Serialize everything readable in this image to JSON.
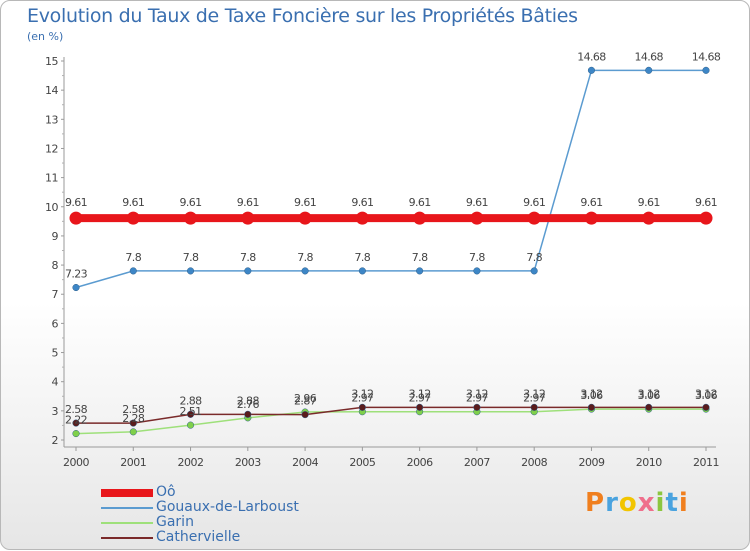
{
  "title": "Evolution du Taux de Taxe Foncière sur les Propriétés Bâties",
  "unit": "(en %)",
  "logo": {
    "text": "Proxiti",
    "letters": [
      {
        "ch": "P",
        "color": "#f07f1e"
      },
      {
        "ch": "r",
        "color": "#4aa3df"
      },
      {
        "ch": "o",
        "color": "#f2c500"
      },
      {
        "ch": "x",
        "color": "#ef6f8c"
      },
      {
        "ch": "i",
        "color": "#8cc63f"
      },
      {
        "ch": "t",
        "color": "#4aa3df"
      },
      {
        "ch": "i",
        "color": "#f07f1e"
      }
    ]
  },
  "chart_data": {
    "type": "line",
    "title": "Evolution du Taux de Taxe Foncière sur les Propriétés Bâties",
    "ylabel": "(en %)",
    "xlabel": "",
    "x": [
      "2000",
      "2001",
      "2002",
      "2003",
      "2004",
      "2005",
      "2006",
      "2007",
      "2008",
      "2009",
      "2010",
      "2011"
    ],
    "ylim": [
      2,
      15
    ],
    "yticks": [
      2,
      3,
      4,
      5,
      6,
      7,
      8,
      9,
      10,
      11,
      12,
      13,
      14,
      15
    ],
    "grid": false,
    "legend_position": "bottom-left",
    "series": [
      {
        "name": "Oô",
        "color": "#e8161b",
        "values": [
          9.61,
          9.61,
          9.61,
          9.61,
          9.61,
          9.61,
          9.61,
          9.61,
          9.61,
          9.61,
          9.61,
          9.61
        ],
        "labels": [
          "9.61",
          "9.61",
          "9.61",
          "9.61",
          "9.61",
          "9.61",
          "9.61",
          "9.61",
          "9.61",
          "9.61",
          "9.61",
          "9.61"
        ]
      },
      {
        "name": "Gouaux-de-Larboust",
        "color": "#5b9bd0",
        "values": [
          7.23,
          7.8,
          7.8,
          7.8,
          7.8,
          7.8,
          7.8,
          7.8,
          7.8,
          14.68,
          14.68,
          14.68
        ],
        "labels": [
          "7.23",
          "7.8",
          "7.8",
          "7.8",
          "7.8",
          "7.8",
          "7.8",
          "7.8",
          "7.8",
          "14.68",
          "14.68",
          "14.68"
        ]
      },
      {
        "name": "Garin",
        "color": "#9ee07a",
        "values": [
          2.22,
          2.28,
          2.51,
          2.76,
          2.96,
          2.97,
          2.97,
          2.97,
          2.97,
          3.06,
          3.06,
          3.06
        ],
        "labels": [
          "2.22",
          "2.28",
          "2.51",
          "2.76",
          "2.96",
          "2.97",
          "2.97",
          "2.97",
          "2.97",
          "3.06",
          "3.06",
          "3.06"
        ]
      },
      {
        "name": "Cathervielle",
        "color": "#7a2a2a",
        "values": [
          2.58,
          2.58,
          2.88,
          2.88,
          2.87,
          3.12,
          3.12,
          3.12,
          3.12,
          3.12,
          3.12,
          3.12
        ],
        "labels": [
          "2.58",
          "2.58",
          "2.88",
          "2.88",
          "2.87",
          "3.12",
          "3.12",
          "3.12",
          "3.12",
          "3.12",
          "3.12",
          "3.12"
        ]
      }
    ]
  }
}
